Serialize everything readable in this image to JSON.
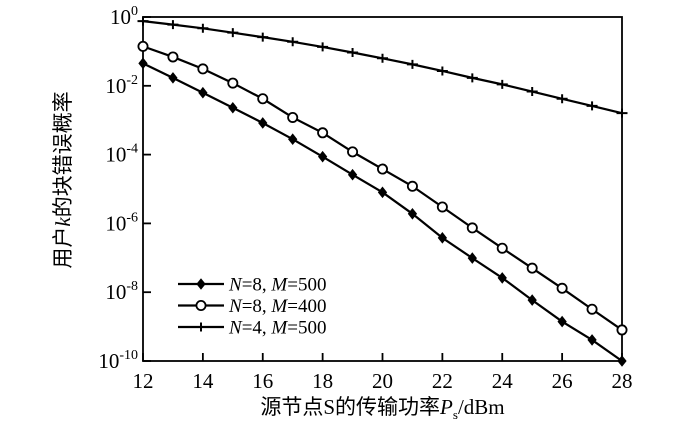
{
  "figure": {
    "background": "#ffffff",
    "ink": "#000000"
  },
  "chart_data": {
    "type": "line",
    "title": "",
    "xlabel": "源节点S的传输功率P_s/dBm",
    "xlabel_parts": [
      {
        "t": "源节点S的传输功率"
      },
      {
        "t": "P",
        "i": true
      },
      {
        "t": "s",
        "sub": true
      },
      {
        "t": "/dBm"
      }
    ],
    "ylabel": "用户k的块错误概率",
    "ylabel_parts": [
      {
        "t": "用户"
      },
      {
        "t": "k",
        "i": true
      },
      {
        "t": "的块错误概率"
      }
    ],
    "x_axis": {
      "min": 12,
      "max": 28,
      "ticks": [
        12,
        14,
        16,
        18,
        20,
        22,
        24,
        26,
        28
      ]
    },
    "y_axis": {
      "scale": "log",
      "exponent_top": 0,
      "exponent_bottom": -10,
      "tick_exponents": [
        0,
        -2,
        -4,
        -6,
        -8,
        -10
      ],
      "tick_base": "10"
    },
    "grid": false,
    "legend": {
      "position": "inside-lower-left",
      "border": false
    },
    "x": [
      12,
      13,
      14,
      15,
      16,
      17,
      18,
      19,
      20,
      21,
      22,
      23,
      24,
      25,
      26,
      27,
      28
    ],
    "series": [
      {
        "name": "N=8, M=500",
        "name_parts": [
          {
            "t": "N",
            "i": true
          },
          {
            "t": "=8, "
          },
          {
            "t": "M",
            "i": true
          },
          {
            "t": "=500"
          }
        ],
        "marker": "diamond",
        "color": "#000000",
        "values": [
          0.045,
          0.017,
          0.0063,
          0.0023,
          0.00083,
          0.00028,
          8.7e-05,
          2.6e-05,
          8e-06,
          1.9e-06,
          3.8e-07,
          9.8e-08,
          2.6e-08,
          5.9e-09,
          1.4e-09,
          4.1e-10,
          1e-10
        ]
      },
      {
        "name": "N=8, M=400",
        "name_parts": [
          {
            "t": "N",
            "i": true
          },
          {
            "t": "=8, "
          },
          {
            "t": "M",
            "i": true
          },
          {
            "t": "=400"
          }
        ],
        "marker": "circle",
        "color": "#000000",
        "values": [
          0.14,
          0.069,
          0.031,
          0.012,
          0.0042,
          0.0012,
          0.00043,
          0.00012,
          3.8e-05,
          1.2e-05,
          3e-06,
          7.4e-07,
          1.9e-07,
          5e-08,
          1.3e-08,
          3.2e-09,
          8e-10
        ]
      },
      {
        "name": "N=4, M=500",
        "name_parts": [
          {
            "t": "N",
            "i": true
          },
          {
            "t": "=4, "
          },
          {
            "t": "M",
            "i": true
          },
          {
            "t": "=500"
          }
        ],
        "marker": "plus",
        "color": "#000000",
        "values": [
          0.76,
          0.6,
          0.47,
          0.35,
          0.26,
          0.19,
          0.135,
          0.093,
          0.063,
          0.042,
          0.027,
          0.017,
          0.011,
          0.0068,
          0.0042,
          0.0026,
          0.0016
        ]
      }
    ]
  }
}
